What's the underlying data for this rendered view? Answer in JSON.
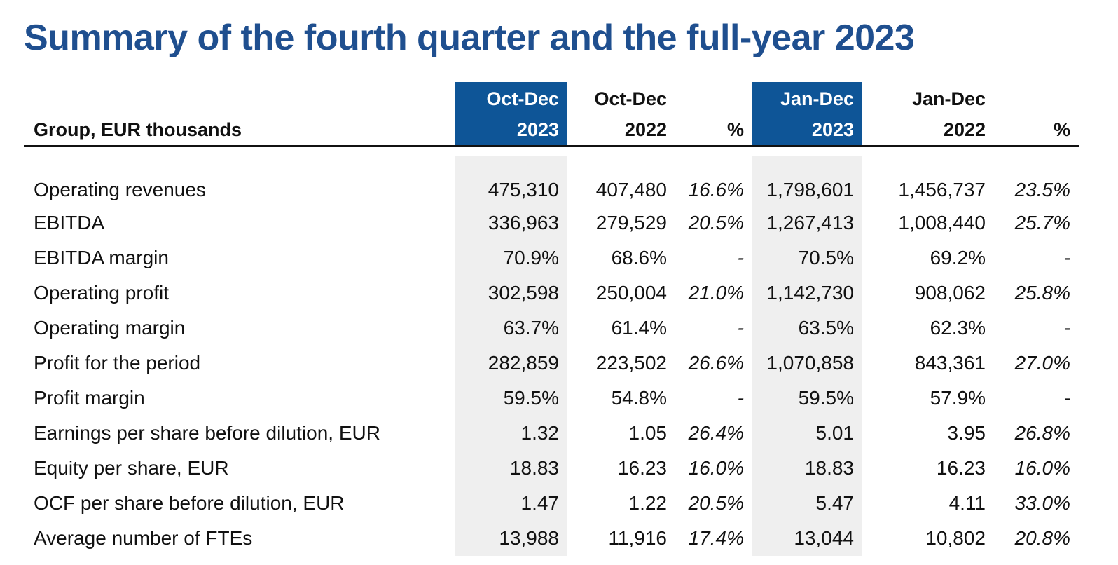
{
  "title": "Summary of the fourth quarter and the full-year 2023",
  "table": {
    "label_header": "Group, EUR thousands",
    "columns": [
      {
        "top": "Oct-Dec",
        "bottom": "2023",
        "highlight": true,
        "kind": "value"
      },
      {
        "top": "Oct-Dec",
        "bottom": "2022",
        "highlight": false,
        "kind": "value"
      },
      {
        "top": "",
        "bottom": "%",
        "highlight": false,
        "kind": "pct"
      },
      {
        "top": "Jan-Dec",
        "bottom": "2023",
        "highlight": true,
        "kind": "value"
      },
      {
        "top": "Jan-Dec",
        "bottom": "2022",
        "highlight": false,
        "kind": "value"
      },
      {
        "top": "",
        "bottom": "%",
        "highlight": false,
        "kind": "pct"
      }
    ],
    "rows": [
      {
        "label": "Operating revenues",
        "values": [
          "475,310",
          "407,480",
          "16.6%",
          "1,798,601",
          "1,456,737",
          "23.5%"
        ]
      },
      {
        "label": "EBITDA",
        "values": [
          "336,963",
          "279,529",
          "20.5%",
          "1,267,413",
          "1,008,440",
          "25.7%"
        ]
      },
      {
        "label": "EBITDA margin",
        "values": [
          "70.9%",
          "68.6%",
          "-",
          "70.5%",
          "69.2%",
          "-"
        ]
      },
      {
        "label": "Operating profit",
        "values": [
          "302,598",
          "250,004",
          "21.0%",
          "1,142,730",
          "908,062",
          "25.8%"
        ]
      },
      {
        "label": "Operating margin",
        "values": [
          "63.7%",
          "61.4%",
          "-",
          "63.5%",
          "62.3%",
          "-"
        ]
      },
      {
        "label": "Profit for the period",
        "values": [
          "282,859",
          "223,502",
          "26.6%",
          "1,070,858",
          "843,361",
          "27.0%"
        ]
      },
      {
        "label": "Profit margin",
        "values": [
          "59.5%",
          "54.8%",
          "-",
          "59.5%",
          "57.9%",
          "-"
        ]
      },
      {
        "label": "Earnings per share before dilution, EUR",
        "values": [
          "1.32",
          "1.05",
          "26.4%",
          "5.01",
          "3.95",
          "26.8%"
        ]
      },
      {
        "label": "Equity per share, EUR",
        "values": [
          "18.83",
          "16.23",
          "16.0%",
          "18.83",
          "16.23",
          "16.0%"
        ]
      },
      {
        "label": "OCF per share before dilution, EUR",
        "values": [
          "1.47",
          "1.22",
          "20.5%",
          "5.47",
          "4.11",
          "33.0%"
        ]
      },
      {
        "label": "Average number of FTEs",
        "values": [
          "13,988",
          "11,916",
          "17.4%",
          "13,044",
          "10,802",
          "20.8%"
        ]
      }
    ]
  },
  "colors": {
    "title": "#1f4f8f",
    "highlight_header": "#0e5597",
    "highlight_shade": "#efefef"
  }
}
